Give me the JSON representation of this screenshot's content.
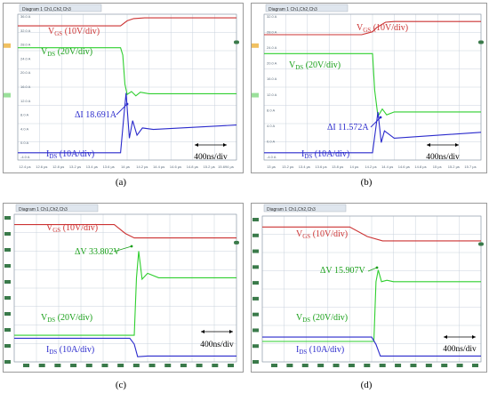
{
  "colors": {
    "vgs": "#cc3333",
    "vds": "#2fcf2f",
    "vds_dark": "#1aa01a",
    "ids": "#2a2acc",
    "grid": "#c8d2dc",
    "marker": "#3a7a4a"
  },
  "captions": [
    "(a)",
    "(b)",
    "(c)",
    "(d)"
  ],
  "chart_data": [
    {
      "type": "line",
      "panel": "a",
      "header": "Diagram 1  Ch1,Ch2,Ch3",
      "labels": {
        "vgs": [
          "V",
          "GS",
          " (10V/div)"
        ],
        "vds": [
          "V",
          "DS",
          " (20V/div)"
        ],
        "ids": [
          "I",
          "DS",
          " (10A/div)"
        ]
      },
      "annotation": "ΔI 18.691A",
      "scale": "400ns/div",
      "x_ticks": [
        "12.4 µs",
        "12.6 µs",
        "12.8 µs",
        "13.2 µs",
        "13.4 µs",
        "13.6 µs",
        "14 µs",
        "14.2 µs",
        "14.4 µs",
        "14.6 µs",
        "14.8 µs",
        "15.2 µs",
        "15.694 µs"
      ],
      "y_ticks": [
        "36.0 A",
        "32.0 A",
        "28.0 A",
        "24.0 A",
        "20.0 A",
        "16.0 A",
        "12.0 A",
        "8.0 A",
        "4.0 A",
        "0.0 A",
        "-4.0 A"
      ],
      "series": [
        {
          "key": "vgs",
          "x": [
            0,
            0.47,
            0.5,
            0.53,
            0.58,
            0.65,
            1
          ],
          "y": [
            0.92,
            0.92,
            0.955,
            0.97,
            0.975,
            0.975,
            0.975
          ]
        },
        {
          "key": "vds",
          "x": [
            0,
            0.47,
            0.48,
            0.49,
            0.5,
            0.52,
            0.54,
            0.56,
            0.6,
            1
          ],
          "y": [
            0.77,
            0.77,
            0.72,
            0.52,
            0.45,
            0.47,
            0.44,
            0.465,
            0.455,
            0.455
          ]
        },
        {
          "key": "ids",
          "x": [
            0,
            0.47,
            0.485,
            0.495,
            0.51,
            0.525,
            0.545,
            0.57,
            0.62,
            1
          ],
          "y": [
            0.05,
            0.05,
            0.3,
            0.46,
            0.15,
            0.27,
            0.17,
            0.22,
            0.21,
            0.24
          ]
        }
      ]
    },
    {
      "type": "line",
      "panel": "b",
      "header": "Diagram 1  Ch1,Ch2,Ch3",
      "labels": {
        "vgs": [
          "V",
          "GS",
          " (10V/div)"
        ],
        "vds": [
          "V",
          "DS",
          " (20V/div)"
        ],
        "ids": [
          "I",
          "DS",
          " (10A/div)"
        ]
      },
      "annotation": "ΔI 11.572A",
      "scale": "400ns/div",
      "x_ticks": [
        "13 µs",
        "13.2 µs",
        "13.4 µs",
        "13.6 µs",
        "13.8 µs",
        "14 µs",
        "14.2 µs",
        "14.4 µs",
        "14.6 µs",
        "14.8 µs",
        "15 µs",
        "15.2 µs",
        "15.7 µs"
      ],
      "y_ticks": [
        "32.0 A",
        "28.0 A",
        "24.0 A",
        "20.0 A",
        "16.0 A",
        "12.0 A",
        "8.0 A",
        "4.0 A",
        "0.0 A",
        "-4.0 A"
      ],
      "series": [
        {
          "key": "vgs",
          "x": [
            0,
            0.45,
            0.5,
            0.52,
            0.56,
            0.6,
            1
          ],
          "y": [
            0.86,
            0.86,
            0.88,
            0.91,
            0.945,
            0.95,
            0.95
          ]
        },
        {
          "key": "vds",
          "x": [
            0,
            0.5,
            0.51,
            0.525,
            0.545,
            0.565,
            0.6,
            1
          ],
          "y": [
            0.73,
            0.73,
            0.48,
            0.3,
            0.35,
            0.31,
            0.33,
            0.33
          ]
        },
        {
          "key": "ids",
          "x": [
            0,
            0.5,
            0.515,
            0.525,
            0.54,
            0.555,
            0.6,
            1
          ],
          "y": [
            0.05,
            0.05,
            0.22,
            0.33,
            0.12,
            0.2,
            0.15,
            0.19
          ]
        }
      ]
    },
    {
      "type": "line",
      "panel": "c",
      "header": "Diagram 1  Ch1,Ch2,Ch3",
      "labels": {
        "vgs": [
          "V",
          "GS",
          " (10V/div)"
        ],
        "vds": [
          "V",
          "DS",
          " (20V/div)"
        ],
        "ids": [
          "I",
          "DS",
          " (10A/div)"
        ]
      },
      "annotation": "ΔV 33.802V",
      "scale": "400ns/div",
      "x_ticks": [],
      "y_ticks": [],
      "series": [
        {
          "key": "vgs",
          "x": [
            0,
            0.45,
            0.5,
            0.54,
            1
          ],
          "y": [
            0.93,
            0.93,
            0.87,
            0.84,
            0.84
          ]
        },
        {
          "key": "vds",
          "x": [
            0,
            0.54,
            0.55,
            0.56,
            0.575,
            0.6,
            0.65,
            1
          ],
          "y": [
            0.18,
            0.18,
            0.57,
            0.75,
            0.56,
            0.6,
            0.57,
            0.57
          ]
        },
        {
          "key": "ids",
          "x": [
            0,
            0.52,
            0.54,
            0.555,
            0.6,
            1
          ],
          "y": [
            0.16,
            0.16,
            0.12,
            0.035,
            0.04,
            0.04
          ]
        }
      ]
    },
    {
      "type": "line",
      "panel": "d",
      "header": "Diagram 1  Ch1,Ch2,Ch3",
      "labels": {
        "vgs": [
          "V",
          "GS",
          " (10V/div)"
        ],
        "vds": [
          "V",
          "DS",
          " (20V/div)"
        ],
        "ids": [
          "I",
          "DS",
          " (10A/div)"
        ]
      },
      "annotation": "ΔV 15.907V",
      "scale": "400ns/div",
      "x_ticks": [],
      "y_ticks": [],
      "series": [
        {
          "key": "vgs",
          "x": [
            0,
            0.4,
            0.48,
            0.55,
            1
          ],
          "y": [
            0.925,
            0.925,
            0.86,
            0.83,
            0.83
          ]
        },
        {
          "key": "vds",
          "x": [
            0,
            0.51,
            0.52,
            0.53,
            0.545,
            0.57,
            0.6,
            1
          ],
          "y": [
            0.14,
            0.14,
            0.55,
            0.63,
            0.55,
            0.56,
            0.55,
            0.55
          ]
        },
        {
          "key": "ids",
          "x": [
            0,
            0.5,
            0.52,
            0.54,
            0.6,
            1
          ],
          "y": [
            0.17,
            0.17,
            0.12,
            0.04,
            0.04,
            0.04
          ]
        }
      ]
    }
  ]
}
